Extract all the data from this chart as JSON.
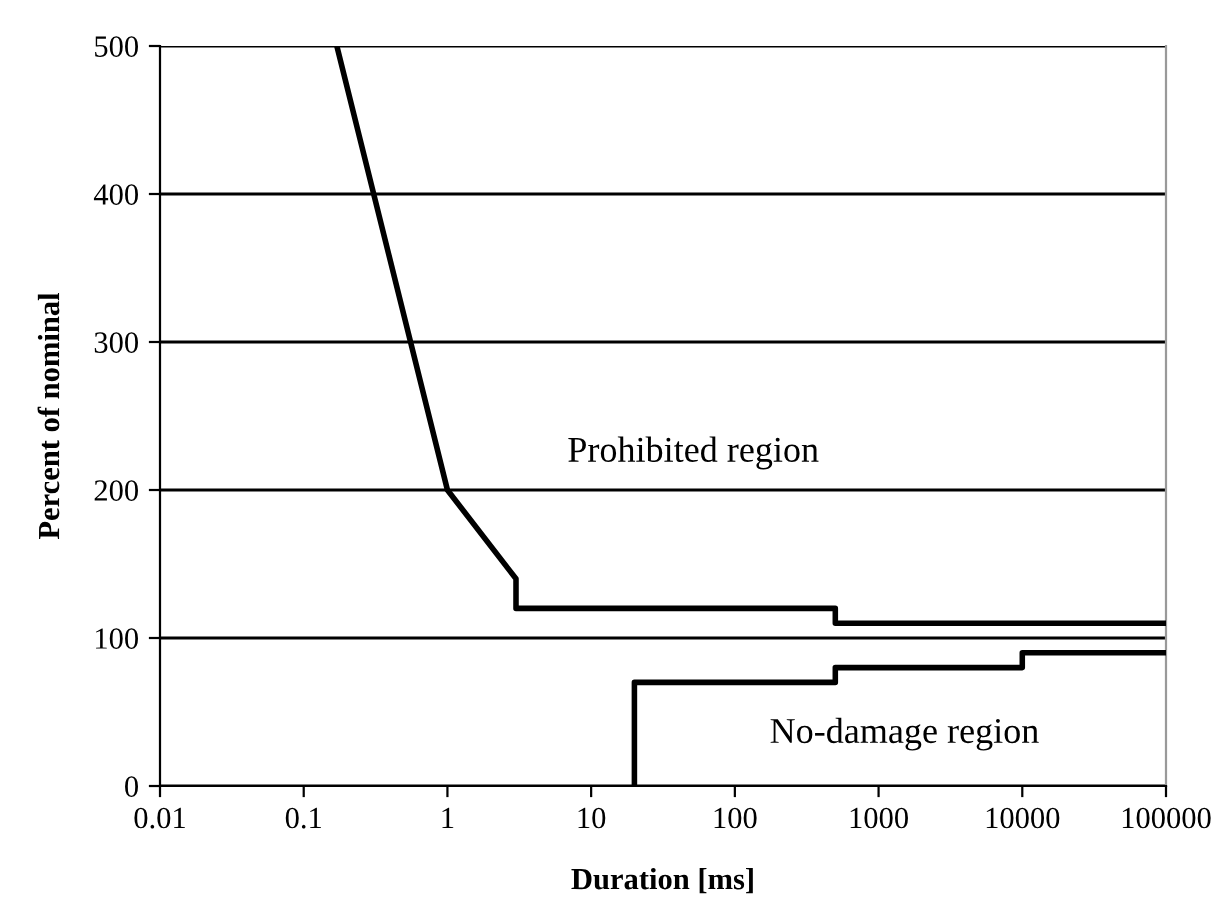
{
  "chart_data": {
    "type": "line",
    "xlabel": "Duration [ms]",
    "ylabel": "Percent of nominal",
    "series": [
      {
        "color": "#000000",
        "x": [
          0.17,
          1,
          3,
          3,
          500,
          500,
          100000
        ],
        "values": [
          500,
          200,
          140,
          120,
          120,
          110,
          110
        ]
      },
      {
        "color": "#000000",
        "x": [
          20,
          20,
          500,
          500,
          10000,
          10000,
          100000
        ],
        "values": [
          0,
          70,
          70,
          80,
          80,
          90,
          90
        ]
      }
    ],
    "log": "x",
    "xlim": [
      0.01,
      100000
    ],
    "xticks": [
      0.01,
      0.1,
      1,
      10,
      100,
      1000,
      10000,
      100000
    ],
    "ylim": [
      0,
      500
    ],
    "yticks": [
      0,
      100,
      200,
      300,
      400,
      500
    ],
    "grid": "y",
    "legend": false,
    "marker": "none",
    "line_style": "solid",
    "annotations": [
      "Prohibited region",
      "No-damage region"
    ]
  }
}
